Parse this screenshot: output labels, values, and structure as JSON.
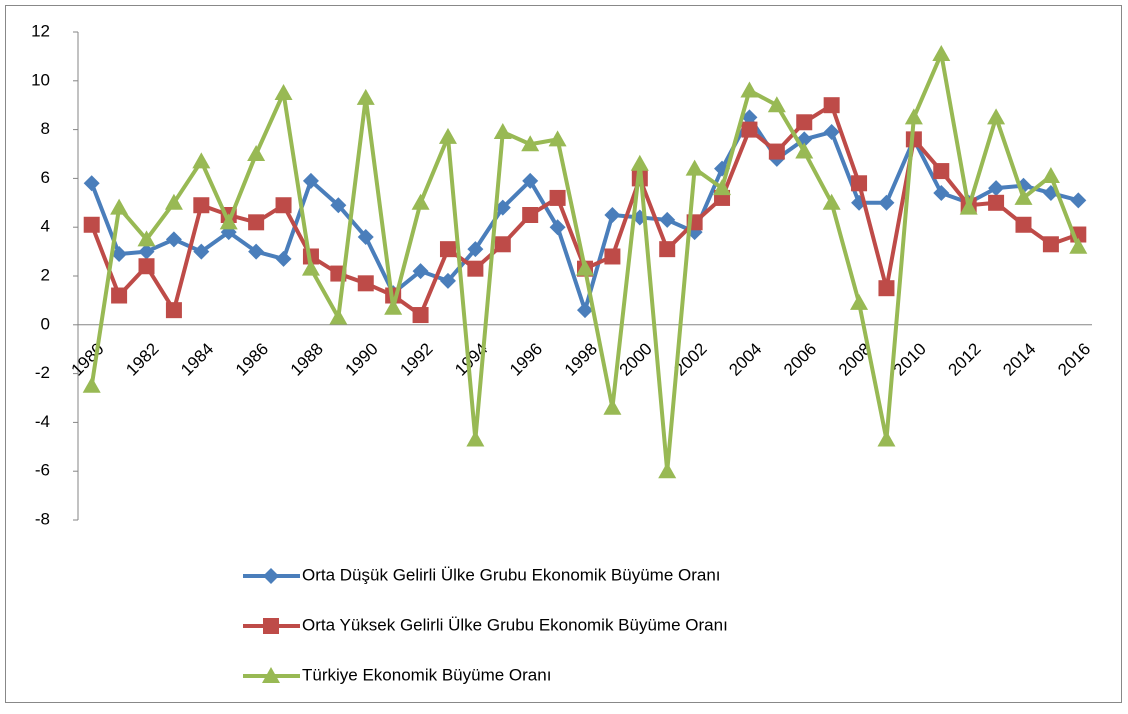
{
  "chart_data": {
    "type": "line",
    "categories": [
      "1980",
      null,
      "1982",
      null,
      "1984",
      null,
      "1986",
      null,
      "1988",
      null,
      "1990",
      null,
      "1992",
      null,
      "1994",
      null,
      "1996",
      null,
      "1998",
      null,
      "2000",
      null,
      "2002",
      null,
      "2004",
      null,
      "2006",
      null,
      "2008",
      null,
      "2010",
      null,
      "2012",
      null,
      "2014",
      null,
      "2016"
    ],
    "series": [
      {
        "name": "Orta Düşük Gelirli Ülke Grubu Ekonomik Büyüme Oranı",
        "color": "#4a7ebb",
        "marker": "diamond",
        "values": [
          5.8,
          2.9,
          3.0,
          3.5,
          3.0,
          3.8,
          3.0,
          2.7,
          5.9,
          4.9,
          3.6,
          1.3,
          2.2,
          1.8,
          3.1,
          4.8,
          5.9,
          4.0,
          0.6,
          4.5,
          4.4,
          4.3,
          3.8,
          6.4,
          8.5,
          6.8,
          7.6,
          7.9,
          5.0,
          5.0,
          7.6,
          5.4,
          5.0,
          5.6,
          5.7,
          5.4,
          5.1
        ]
      },
      {
        "name": "Orta Yüksek Gelirli Ülke Grubu Ekonomik Büyüme Oranı",
        "color": "#be4b48",
        "marker": "square",
        "values": [
          4.1,
          1.2,
          2.4,
          0.6,
          4.9,
          4.5,
          4.2,
          4.9,
          2.8,
          2.1,
          1.7,
          1.2,
          0.4,
          3.1,
          2.3,
          3.3,
          4.5,
          5.2,
          2.3,
          2.8,
          6.0,
          3.1,
          4.2,
          5.2,
          8.0,
          7.1,
          8.3,
          9.0,
          5.8,
          1.5,
          7.6,
          6.3,
          4.9,
          5.0,
          4.1,
          3.3,
          3.7
        ]
      },
      {
        "name": "Türkiye Ekonomik Büyüme Oranı",
        "color": "#98b954",
        "marker": "triangle",
        "values": [
          -2.5,
          4.8,
          3.5,
          5.0,
          6.7,
          4.2,
          7.0,
          9.5,
          2.3,
          0.3,
          9.3,
          0.7,
          5.0,
          7.7,
          -4.7,
          7.9,
          7.4,
          7.6,
          2.3,
          -3.4,
          6.6,
          -6.0,
          6.4,
          5.6,
          9.6,
          9.0,
          7.1,
          5.0,
          0.9,
          -4.7,
          8.5,
          11.1,
          4.8,
          8.5,
          5.2,
          6.1,
          3.2
        ]
      }
    ],
    "ylim": [
      -8,
      12
    ],
    "yticks": [
      -8,
      -6,
      -4,
      -2,
      0,
      2,
      4,
      6,
      8,
      10,
      12
    ],
    "legend": "bottom"
  }
}
